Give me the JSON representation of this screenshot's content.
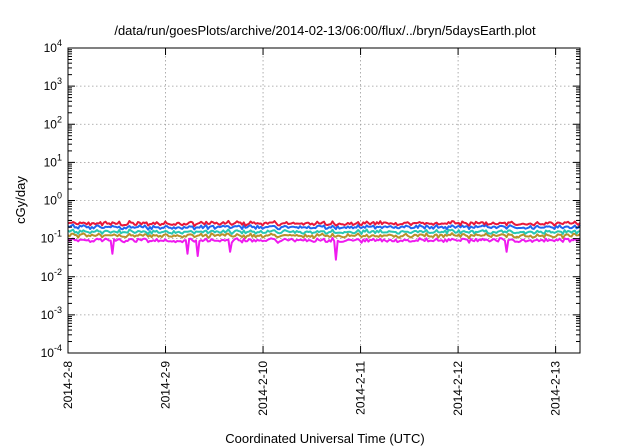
{
  "chart_data": {
    "type": "line",
    "title": "/data/run/goesPlots/archive/2014-02-13/06:00/flux/../bryn/5daysEarth.plot",
    "xlabel": "Coordinated Universal Time (UTC)",
    "ylabel": "cGy/day",
    "yscale": "log",
    "ylim": [
      0.0001,
      10000
    ],
    "xlim": [
      "2014-02-08",
      "2014-02-13 06:00"
    ],
    "y_ticks": [
      {
        "value": 0.0001,
        "base": "10",
        "exp": "-4"
      },
      {
        "value": 0.001,
        "base": "10",
        "exp": "-3"
      },
      {
        "value": 0.01,
        "base": "10",
        "exp": "-2"
      },
      {
        "value": 0.1,
        "base": "10",
        "exp": "-1"
      },
      {
        "value": 1,
        "base": "10",
        "exp": "0"
      },
      {
        "value": 10,
        "base": "10",
        "exp": "1"
      },
      {
        "value": 100,
        "base": "10",
        "exp": "2"
      },
      {
        "value": 1000,
        "base": "10",
        "exp": "3"
      },
      {
        "value": 10000,
        "base": "10",
        "exp": "4"
      }
    ],
    "x_ticks": [
      {
        "value": "2014-02-08",
        "label": "2014-2-8"
      },
      {
        "value": "2014-02-09",
        "label": "2014-2-9"
      },
      {
        "value": "2014-02-10",
        "label": "2014-2-10"
      },
      {
        "value": "2014-02-11",
        "label": "2014-2-11"
      },
      {
        "value": "2014-02-12",
        "label": "2014-2-12"
      },
      {
        "value": "2014-02-13",
        "label": "2014-2-13"
      }
    ],
    "grid": true,
    "series": [
      {
        "color": "#e8173a",
        "typical_value": 0.25
      },
      {
        "color": "#1f66f0",
        "typical_value": 0.2
      },
      {
        "color": "#27c7b4",
        "typical_value": 0.15
      },
      {
        "color": "#b8902a",
        "typical_value": 0.12
      },
      {
        "color": "#ef1aef",
        "typical_value": 0.09
      }
    ],
    "dips": [
      {
        "time": "2014-02-08 11:00",
        "value": 0.04
      },
      {
        "time": "2014-02-09 05:30",
        "value": 0.04
      },
      {
        "time": "2014-02-09 08:00",
        "value": 0.035
      },
      {
        "time": "2014-02-09 16:00",
        "value": 0.045
      },
      {
        "time": "2014-02-10 18:00",
        "value": 0.028
      },
      {
        "time": "2014-02-12 12:00",
        "value": 0.045
      }
    ]
  }
}
